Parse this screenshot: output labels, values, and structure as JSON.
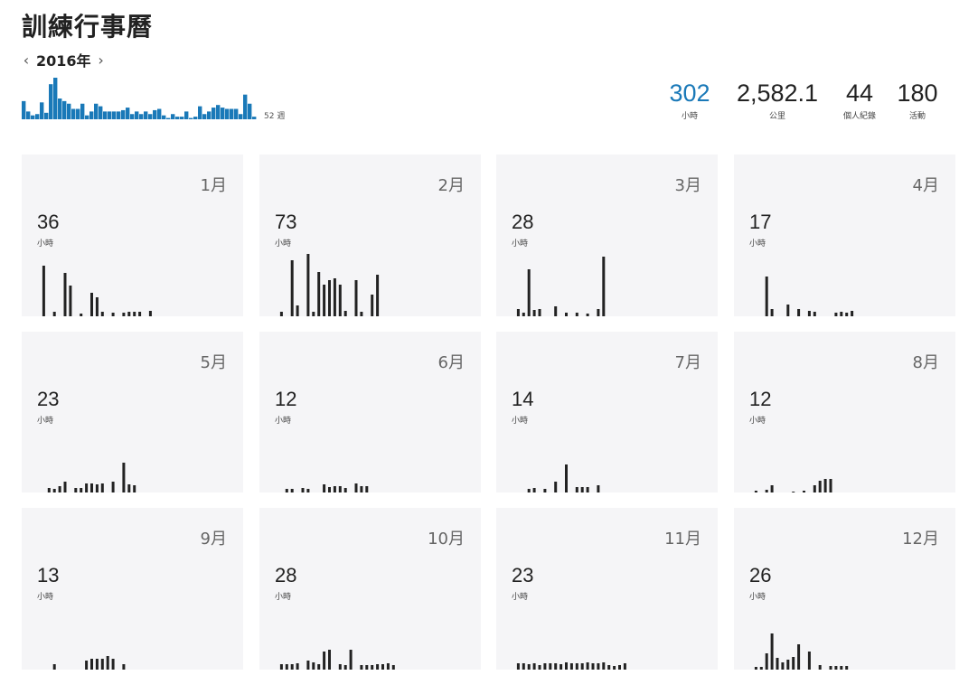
{
  "title": "訓練行事曆",
  "year_nav": {
    "prev_icon": "chevron-left-icon",
    "next_icon": "chevron-right-icon",
    "year": "2016年"
  },
  "weekly_chart": {
    "label": "52 週",
    "accent": "#1a79b8",
    "values": [
      14,
      6,
      3,
      4,
      13,
      5,
      27,
      32,
      16,
      14,
      12,
      8,
      8,
      12,
      3,
      6,
      12,
      10,
      6,
      6,
      6,
      6,
      7,
      9,
      4,
      6,
      4,
      6,
      4,
      7,
      8,
      3,
      1,
      4,
      2,
      2,
      6,
      1,
      2,
      10,
      4,
      6,
      9,
      11,
      9,
      8,
      8,
      8,
      4,
      19,
      12,
      2
    ]
  },
  "stats": [
    {
      "value": "302",
      "label": "小時",
      "accent": true
    },
    {
      "value": "2,582.1",
      "label": "公里",
      "accent": false
    },
    {
      "value": "44",
      "label": "個人紀錄",
      "accent": false
    },
    {
      "value": "180",
      "label": "活動",
      "accent": false
    }
  ],
  "months": [
    {
      "month": "1月",
      "hours": "36",
      "unit": "小時",
      "bars": [
        [
          1,
          56
        ],
        [
          3,
          5
        ],
        [
          5,
          48
        ],
        [
          6,
          34
        ],
        [
          8,
          3
        ],
        [
          10,
          26
        ],
        [
          11,
          21
        ],
        [
          12,
          5
        ],
        [
          14,
          4
        ],
        [
          16,
          4
        ],
        [
          17,
          5
        ],
        [
          18,
          5
        ],
        [
          19,
          5
        ],
        [
          21,
          6
        ]
      ]
    },
    {
      "month": "2月",
      "hours": "73",
      "unit": "小時",
      "bars": [
        [
          1,
          5
        ],
        [
          3,
          62
        ],
        [
          4,
          12
        ],
        [
          6,
          69
        ],
        [
          7,
          5
        ],
        [
          8,
          49
        ],
        [
          9,
          35
        ],
        [
          10,
          40
        ],
        [
          11,
          42
        ],
        [
          12,
          35
        ],
        [
          13,
          6
        ],
        [
          15,
          40
        ],
        [
          16,
          5
        ],
        [
          18,
          24
        ],
        [
          19,
          46
        ]
      ]
    },
    {
      "month": "3月",
      "hours": "28",
      "unit": "小時",
      "bars": [
        [
          1,
          8
        ],
        [
          2,
          4
        ],
        [
          3,
          52
        ],
        [
          4,
          7
        ],
        [
          5,
          8
        ],
        [
          8,
          11
        ],
        [
          10,
          4
        ],
        [
          12,
          4
        ],
        [
          14,
          3
        ],
        [
          16,
          8
        ],
        [
          17,
          66
        ]
      ]
    },
    {
      "month": "4月",
      "hours": "17",
      "unit": "小時",
      "bars": [
        [
          3,
          44
        ],
        [
          4,
          8
        ],
        [
          7,
          13
        ],
        [
          9,
          8
        ],
        [
          11,
          6
        ],
        [
          12,
          5
        ],
        [
          16,
          4
        ],
        [
          17,
          5
        ],
        [
          18,
          4
        ],
        [
          19,
          6
        ]
      ]
    },
    {
      "month": "5月",
      "hours": "23",
      "unit": "小時",
      "bars": [
        [
          2,
          5
        ],
        [
          3,
          4
        ],
        [
          4,
          7
        ],
        [
          5,
          12
        ],
        [
          7,
          5
        ],
        [
          8,
          5
        ],
        [
          9,
          10
        ],
        [
          10,
          10
        ],
        [
          11,
          9
        ],
        [
          12,
          10
        ],
        [
          14,
          12
        ],
        [
          16,
          33
        ],
        [
          17,
          9
        ],
        [
          18,
          8
        ]
      ]
    },
    {
      "month": "6月",
      "hours": "12",
      "unit": "小時",
      "bars": [
        [
          2,
          4
        ],
        [
          3,
          4
        ],
        [
          5,
          5
        ],
        [
          6,
          4
        ],
        [
          9,
          9
        ],
        [
          10,
          6
        ],
        [
          11,
          7
        ],
        [
          12,
          7
        ],
        [
          13,
          5
        ],
        [
          15,
          10
        ],
        [
          16,
          7
        ],
        [
          17,
          7
        ]
      ]
    },
    {
      "month": "7月",
      "hours": "14",
      "unit": "小時",
      "bars": [
        [
          3,
          4
        ],
        [
          4,
          5
        ],
        [
          6,
          4
        ],
        [
          8,
          12
        ],
        [
          10,
          31
        ],
        [
          12,
          6
        ],
        [
          13,
          6
        ],
        [
          14,
          6
        ],
        [
          16,
          8
        ]
      ]
    },
    {
      "month": "8月",
      "hours": "12",
      "unit": "小時",
      "bars": [
        [
          1,
          2
        ],
        [
          3,
          3
        ],
        [
          4,
          8
        ],
        [
          8,
          1
        ],
        [
          10,
          2
        ],
        [
          12,
          8
        ],
        [
          13,
          13
        ],
        [
          14,
          15
        ],
        [
          15,
          15
        ]
      ]
    },
    {
      "month": "9月",
      "hours": "13",
      "unit": "小時",
      "bars": [
        [
          3,
          6
        ],
        [
          9,
          10
        ],
        [
          10,
          12
        ],
        [
          11,
          12
        ],
        [
          12,
          12
        ],
        [
          13,
          15
        ],
        [
          14,
          12
        ],
        [
          16,
          6
        ]
      ]
    },
    {
      "month": "10月",
      "hours": "28",
      "unit": "小時",
      "bars": [
        [
          1,
          6
        ],
        [
          2,
          6
        ],
        [
          3,
          6
        ],
        [
          4,
          7
        ],
        [
          6,
          10
        ],
        [
          7,
          8
        ],
        [
          8,
          6
        ],
        [
          9,
          20
        ],
        [
          10,
          22
        ],
        [
          12,
          6
        ],
        [
          13,
          5
        ],
        [
          14,
          22
        ],
        [
          16,
          5
        ],
        [
          17,
          5
        ],
        [
          18,
          5
        ],
        [
          19,
          6
        ],
        [
          20,
          6
        ],
        [
          21,
          7
        ],
        [
          22,
          5
        ]
      ]
    },
    {
      "month": "11月",
      "hours": "23",
      "unit": "小時",
      "bars": [
        [
          1,
          7
        ],
        [
          2,
          7
        ],
        [
          3,
          6
        ],
        [
          4,
          7
        ],
        [
          5,
          5
        ],
        [
          6,
          7
        ],
        [
          7,
          7
        ],
        [
          8,
          7
        ],
        [
          9,
          6
        ],
        [
          10,
          8
        ],
        [
          11,
          7
        ],
        [
          12,
          7
        ],
        [
          13,
          7
        ],
        [
          14,
          8
        ],
        [
          15,
          7
        ],
        [
          16,
          7
        ],
        [
          17,
          8
        ],
        [
          18,
          5
        ],
        [
          19,
          4
        ],
        [
          20,
          5
        ],
        [
          21,
          7
        ]
      ]
    },
    {
      "month": "12月",
      "hours": "26",
      "unit": "小時",
      "bars": [
        [
          1,
          3
        ],
        [
          2,
          3
        ],
        [
          3,
          18
        ],
        [
          4,
          40
        ],
        [
          5,
          13
        ],
        [
          6,
          8
        ],
        [
          7,
          11
        ],
        [
          8,
          14
        ],
        [
          9,
          28
        ],
        [
          11,
          20
        ],
        [
          13,
          5
        ],
        [
          15,
          4
        ],
        [
          16,
          4
        ],
        [
          17,
          4
        ],
        [
          18,
          4
        ]
      ]
    }
  ]
}
